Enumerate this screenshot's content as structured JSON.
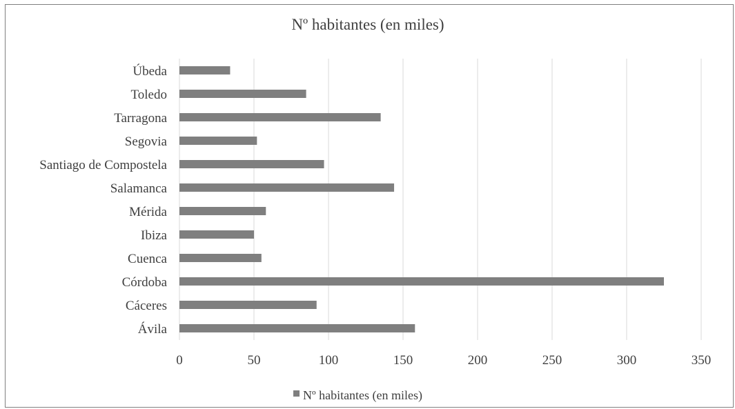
{
  "chart_data": {
    "type": "bar",
    "orientation": "horizontal",
    "title": "Nº habitantes (en miles)",
    "categories": [
      "Ávila",
      "Cáceres",
      "Córdoba",
      "Cuenca",
      "Ibiza",
      "Mérida",
      "Salamanca",
      "Santiago de Compostela",
      "Segovia",
      "Tarragona",
      "Toledo",
      "Úbeda"
    ],
    "series": [
      {
        "name": "Nº habitantes (en miles)",
        "values": [
          158,
          92,
          325,
          55,
          50,
          58,
          144,
          97,
          52,
          135,
          85,
          34
        ],
        "color": "#7f7f7f"
      }
    ],
    "xlim": [
      0,
      350
    ],
    "xticks": [
      0,
      50,
      100,
      150,
      200,
      250,
      300,
      350
    ],
    "grid": true,
    "legend_position": "bottom"
  }
}
